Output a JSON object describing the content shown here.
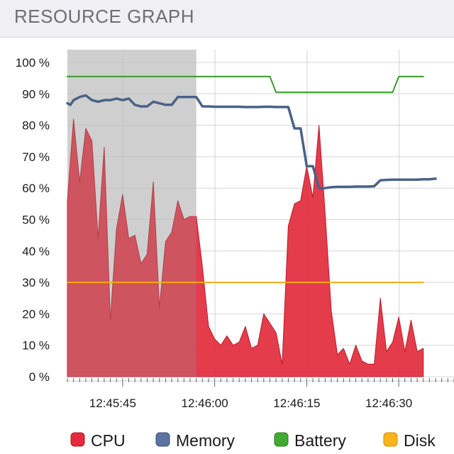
{
  "header": {
    "title": "RESOURCE GRAPH"
  },
  "chart_data": {
    "type": "line",
    "ylim": [
      0,
      100
    ],
    "yticks": [
      0,
      10,
      20,
      30,
      40,
      50,
      60,
      70,
      80,
      90,
      100
    ],
    "ytick_labels": [
      "0 %",
      "10 %",
      "20 %",
      "30 %",
      "40 %",
      "50 %",
      "60 %",
      "70 %",
      "80 %",
      "90 %",
      "100 %"
    ],
    "xlim": [
      0,
      63
    ],
    "xticks": [
      9,
      24,
      39,
      54
    ],
    "xtick_labels": [
      "12:45:45",
      "12:46:00",
      "12:46:15",
      "12:46:30"
    ],
    "highlight_window": [
      0,
      21
    ],
    "colors": {
      "cpu_fill": "#e22b3c",
      "cpu_stroke": "#b81c2b",
      "memory": "#4a6287",
      "battery": "#3c9a2c",
      "disk": "#f5ab12",
      "highlight": "#e3e3e3",
      "grid": "#d4d4d4"
    },
    "series": [
      {
        "name": "CPU",
        "style": "area",
        "x": [
          0,
          1,
          2,
          3,
          4,
          5,
          6,
          7,
          8,
          9,
          10,
          11,
          12,
          13,
          14,
          15,
          16,
          17,
          18,
          19,
          20,
          21,
          22,
          23,
          24,
          25,
          26,
          27,
          28,
          29,
          30,
          31,
          32,
          33,
          34,
          35,
          36,
          37,
          38,
          39,
          40,
          41,
          42,
          43,
          44,
          45,
          46,
          47,
          48,
          49,
          50,
          51,
          52,
          53,
          54,
          55,
          56,
          57,
          58
        ],
        "y": [
          56,
          82,
          62,
          79,
          75,
          44,
          73,
          18,
          47,
          58,
          44,
          45,
          36,
          39,
          62,
          22,
          43,
          46,
          56,
          50,
          51,
          51,
          35,
          16,
          12,
          10,
          13,
          10,
          11,
          16,
          9,
          10,
          20,
          17,
          14,
          4,
          48,
          55,
          56,
          67,
          57,
          80,
          52,
          21,
          7,
          9,
          4,
          10,
          5,
          4,
          4,
          25,
          8,
          11,
          19,
          8,
          18,
          8,
          9
        ]
      },
      {
        "name": "Memory",
        "style": "line",
        "x": [
          0,
          0.5,
          1,
          2,
          3,
          4,
          5,
          6,
          7,
          8,
          9,
          10,
          11,
          12,
          13,
          14,
          15,
          16,
          17,
          18,
          19,
          20,
          21,
          22,
          23,
          24,
          25,
          26,
          27,
          28,
          29,
          30,
          31,
          32,
          33,
          34,
          35,
          36,
          37,
          38,
          39,
          40,
          41,
          42,
          43,
          44,
          45,
          46,
          47,
          48,
          49,
          50,
          51,
          52,
          53,
          54,
          55,
          56,
          57,
          58,
          59,
          60
        ],
        "y": [
          87,
          86.5,
          88,
          89,
          89.5,
          88,
          87.5,
          88,
          88,
          88.5,
          88,
          88.5,
          86.5,
          86,
          86,
          87.5,
          87,
          86.5,
          86.5,
          89,
          89,
          89,
          89,
          86,
          86,
          85.9,
          85.9,
          85.9,
          85.9,
          85.9,
          85.8,
          85.8,
          85.8,
          85.9,
          85.9,
          85.8,
          85.8,
          85.8,
          79,
          79,
          67,
          67,
          60,
          60,
          60.3,
          60.4,
          60.4,
          60.4,
          60.5,
          60.5,
          60.5,
          60.6,
          62.5,
          62.6,
          62.7,
          62.7,
          62.7,
          62.7,
          62.7,
          62.8,
          62.8,
          63
        ]
      },
      {
        "name": "Battery",
        "style": "line",
        "x": [
          0,
          33,
          34,
          53,
          54,
          58
        ],
        "y": [
          95.5,
          95.5,
          90.5,
          90.5,
          95.5,
          95.5
        ]
      },
      {
        "name": "Disk",
        "style": "line",
        "x": [
          0,
          58
        ],
        "y": [
          30,
          30
        ]
      }
    ]
  }
}
